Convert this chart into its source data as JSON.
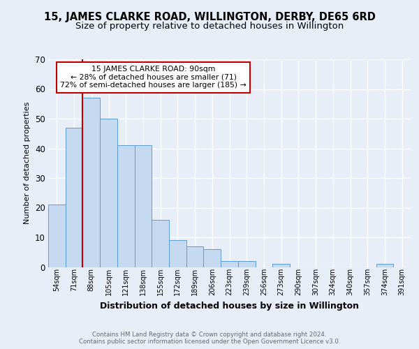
{
  "title1": "15, JAMES CLARKE ROAD, WILLINGTON, DERBY, DE65 6RD",
  "title2": "Size of property relative to detached houses in Willington",
  "xlabel": "Distribution of detached houses by size in Willington",
  "ylabel": "Number of detached properties",
  "categories": [
    "54sqm",
    "71sqm",
    "88sqm",
    "105sqm",
    "121sqm",
    "138sqm",
    "155sqm",
    "172sqm",
    "189sqm",
    "206sqm",
    "223sqm",
    "239sqm",
    "256sqm",
    "273sqm",
    "290sqm",
    "307sqm",
    "324sqm",
    "340sqm",
    "357sqm",
    "374sqm",
    "391sqm"
  ],
  "values": [
    21,
    47,
    57,
    50,
    41,
    41,
    16,
    9,
    7,
    6,
    2,
    2,
    0,
    1,
    0,
    0,
    0,
    0,
    0,
    1,
    0
  ],
  "highlight_bar_index": 2,
  "bar_color": "#c5d9f0",
  "bar_edge_color": "#5b9bd5",
  "highlight_line_color": "#c00000",
  "ylim": [
    0,
    70
  ],
  "yticks": [
    0,
    10,
    20,
    30,
    40,
    50,
    60,
    70
  ],
  "annotation_text": "15 JAMES CLARKE ROAD: 90sqm\n← 28% of detached houses are smaller (71)\n72% of semi-detached houses are larger (185) →",
  "annotation_box_edge_color": "#c00000",
  "background_color": "#e8eef8",
  "plot_bg_color": "#e8eef8",
  "footer_text": "Contains HM Land Registry data © Crown copyright and database right 2024.\nContains public sector information licensed under the Open Government Licence v3.0.",
  "grid_color": "#ffffff",
  "title_fontsize": 10.5,
  "subtitle_fontsize": 9.5
}
